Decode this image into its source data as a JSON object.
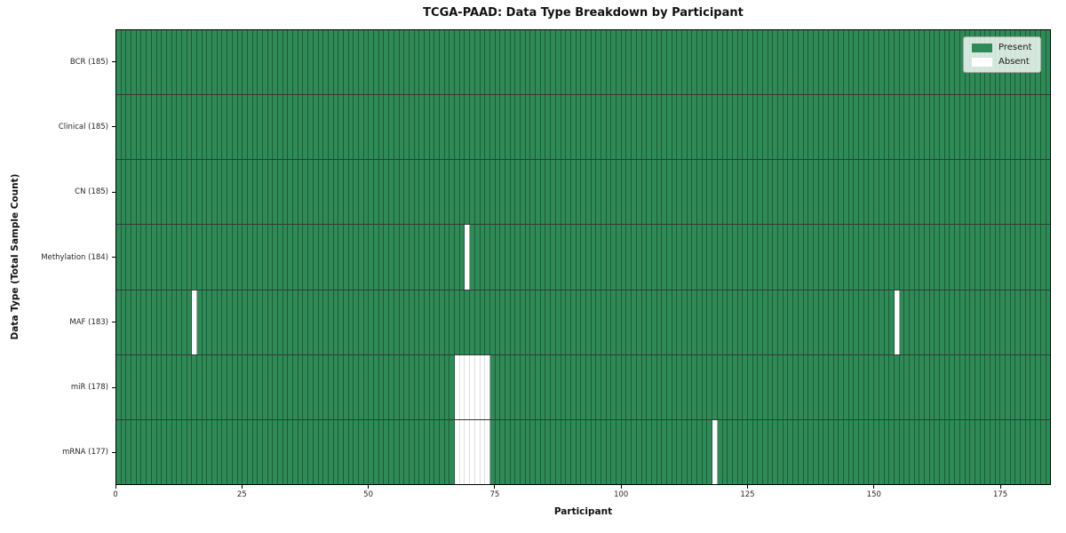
{
  "title": "TCGA-PAAD: Data Type Breakdown by Participant",
  "chart_data": {
    "type": "heatmap",
    "title": "TCGA-PAAD: Data Type Breakdown by Participant",
    "xlabel": "Participant",
    "ylabel": "Data Type (Total Sample Count)",
    "xlim": [
      0,
      185
    ],
    "n_participants": 185,
    "x_ticks": [
      0,
      25,
      50,
      75,
      100,
      125,
      150,
      175
    ],
    "grid": false,
    "legend_position": "upper right",
    "legend": [
      {
        "label": "Present",
        "color": "#2e8b57"
      },
      {
        "label": "Absent",
        "color": "#ffffff"
      }
    ],
    "colors": {
      "present": "#2e8b57",
      "absent": "#ffffff"
    },
    "rows": [
      {
        "label": "BCR (185)",
        "data_type": "BCR",
        "total_samples": 185,
        "absent_participants": []
      },
      {
        "label": "Clinical (185)",
        "data_type": "Clinical",
        "total_samples": 185,
        "absent_participants": []
      },
      {
        "label": "CN (185)",
        "data_type": "CN",
        "total_samples": 185,
        "absent_participants": []
      },
      {
        "label": "Methylation (184)",
        "data_type": "Methylation",
        "total_samples": 184,
        "absent_participants": [
          69
        ]
      },
      {
        "label": "MAF (183)",
        "data_type": "MAF",
        "total_samples": 183,
        "absent_participants": [
          15,
          154
        ]
      },
      {
        "label": "miR (178)",
        "data_type": "miR",
        "total_samples": 178,
        "absent_participants": [
          67,
          68,
          69,
          70,
          71,
          72,
          73
        ]
      },
      {
        "label": "mRNA (177)",
        "data_type": "mRNA",
        "total_samples": 177,
        "absent_participants": [
          67,
          68,
          69,
          70,
          71,
          72,
          73,
          118
        ]
      }
    ]
  }
}
